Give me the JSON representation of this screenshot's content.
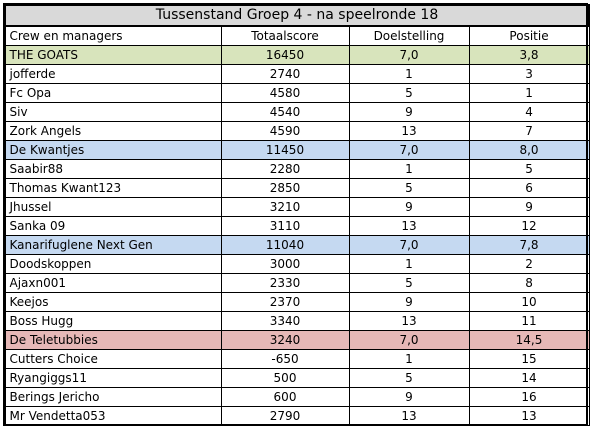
{
  "title": "Tussenstand Groep 4 - na speelronde 18",
  "columns": [
    "Crew en managers",
    "Totaalscore",
    "Doelstelling",
    "Positie"
  ],
  "teams": [
    {
      "name": "THE GOATS",
      "score": "16450",
      "goal": "7,0",
      "position": "3,8",
      "color": "#d8e4bc",
      "members": [
        {
          "name": "jofferde",
          "score": "2740",
          "goal": "1",
          "position": "3"
        },
        {
          "name": "Fc Opa",
          "score": "4580",
          "goal": "5",
          "position": "1"
        },
        {
          "name": "Siv",
          "score": "4540",
          "goal": "9",
          "position": "4"
        },
        {
          "name": "Zork Angels",
          "score": "4590",
          "goal": "13",
          "position": "7"
        }
      ]
    },
    {
      "name": "De Kwantjes",
      "score": "11450",
      "goal": "7,0",
      "position": "8,0",
      "color": "#c5d9f1",
      "members": [
        {
          "name": "Saabir88",
          "score": "2280",
          "goal": "1",
          "position": "5"
        },
        {
          "name": "Thomas Kwant123",
          "score": "2850",
          "goal": "5",
          "position": "6"
        },
        {
          "name": "Jhussel",
          "score": "3210",
          "goal": "9",
          "position": "9"
        },
        {
          "name": "Sanka 09",
          "score": "3110",
          "goal": "13",
          "position": "12"
        }
      ]
    },
    {
      "name": "Kanarifuglene Next Gen",
      "score": "11040",
      "goal": "7,0",
      "position": "7,8",
      "color": "#c5d9f1",
      "members": [
        {
          "name": "Doodskoppen",
          "score": "3000",
          "goal": "1",
          "position": "2"
        },
        {
          "name": "Ajaxn001",
          "score": "2330",
          "goal": "5",
          "position": "8"
        },
        {
          "name": "Keejos",
          "score": "2370",
          "goal": "9",
          "position": "10"
        },
        {
          "name": "Boss Hugg",
          "score": "3340",
          "goal": "13",
          "position": "11"
        }
      ]
    },
    {
      "name": "De Teletubbies",
      "score": "3240",
      "goal": "7,0",
      "position": "14,5",
      "color": "#e6b8b7",
      "members": [
        {
          "name": "Cutters Choice",
          "score": "-650",
          "goal": "1",
          "position": "15"
        },
        {
          "name": "Ryangiggs11",
          "score": "500",
          "goal": "5",
          "position": "14"
        },
        {
          "name": "Berings Jericho",
          "score": "600",
          "goal": "9",
          "position": "16"
        },
        {
          "name": "Mr Vendetta053",
          "score": "2790",
          "goal": "13",
          "position": "13"
        }
      ]
    }
  ]
}
